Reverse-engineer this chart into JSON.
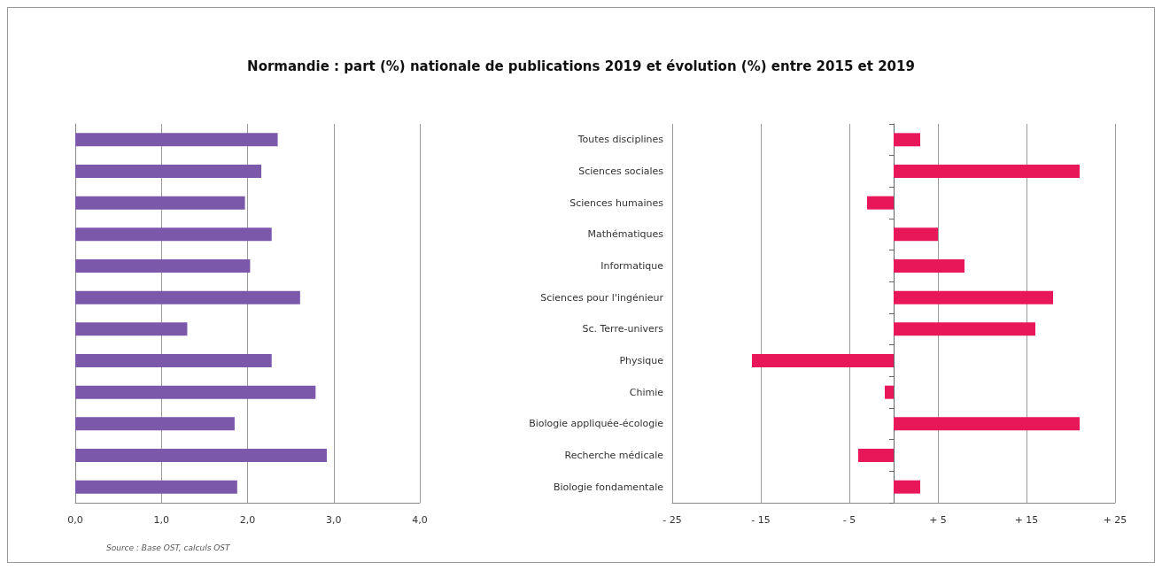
{
  "chart_data": [
    {
      "type": "bar",
      "orientation": "horizontal",
      "title": "Normandie : part (%) nationale de publications 2019 et évolution (%) entre 2015 et 2019",
      "annotations": [
        "Source : Base OST, calculs OST"
      ],
      "categories": [
        null,
        null,
        null,
        null,
        null,
        null,
        null,
        null,
        null,
        null,
        null,
        null
      ],
      "values": [
        2.35,
        2.16,
        1.97,
        2.28,
        2.03,
        2.61,
        1.3,
        2.28,
        2.79,
        1.85,
        2.92,
        1.88
      ],
      "color": "#7b58aa",
      "xlim": [
        0,
        4
      ],
      "xticks": [
        {
          "value": 0,
          "label": "0,0"
        },
        {
          "value": 1,
          "label": "1,0"
        },
        {
          "value": 2,
          "label": "2,0"
        },
        {
          "value": 3,
          "label": "3,0"
        },
        {
          "value": 4,
          "label": "4,0"
        }
      ],
      "grid": "x",
      "tick_labels": "x"
    },
    {
      "type": "bar",
      "orientation": "horizontal",
      "categories": [
        "Toutes disciplines",
        "Sciences sociales",
        "Sciences humaines",
        "Mathématiques",
        "Informatique",
        "Sciences pour l'ingénieur",
        "Sc. Terre-univers",
        "Physique",
        "Chimie",
        "Biologie appliquée-écologie",
        "Recherche médicale",
        "Biologie fondamentale"
      ],
      "values": [
        3,
        21,
        -3,
        5,
        8,
        18,
        16,
        -16,
        -1,
        21,
        -4,
        3
      ],
      "color": "#e8175a",
      "xlim": [
        -25,
        25
      ],
      "xticks": [
        {
          "value": -25,
          "label": "- 25"
        },
        {
          "value": -15,
          "label": "- 15"
        },
        {
          "value": -5,
          "label": "- 5"
        },
        {
          "value": 5,
          "label": "+ 5"
        },
        {
          "value": 15,
          "label": "+ 15"
        },
        {
          "value": 25,
          "label": "+ 25"
        }
      ],
      "grid": "x"
    }
  ]
}
